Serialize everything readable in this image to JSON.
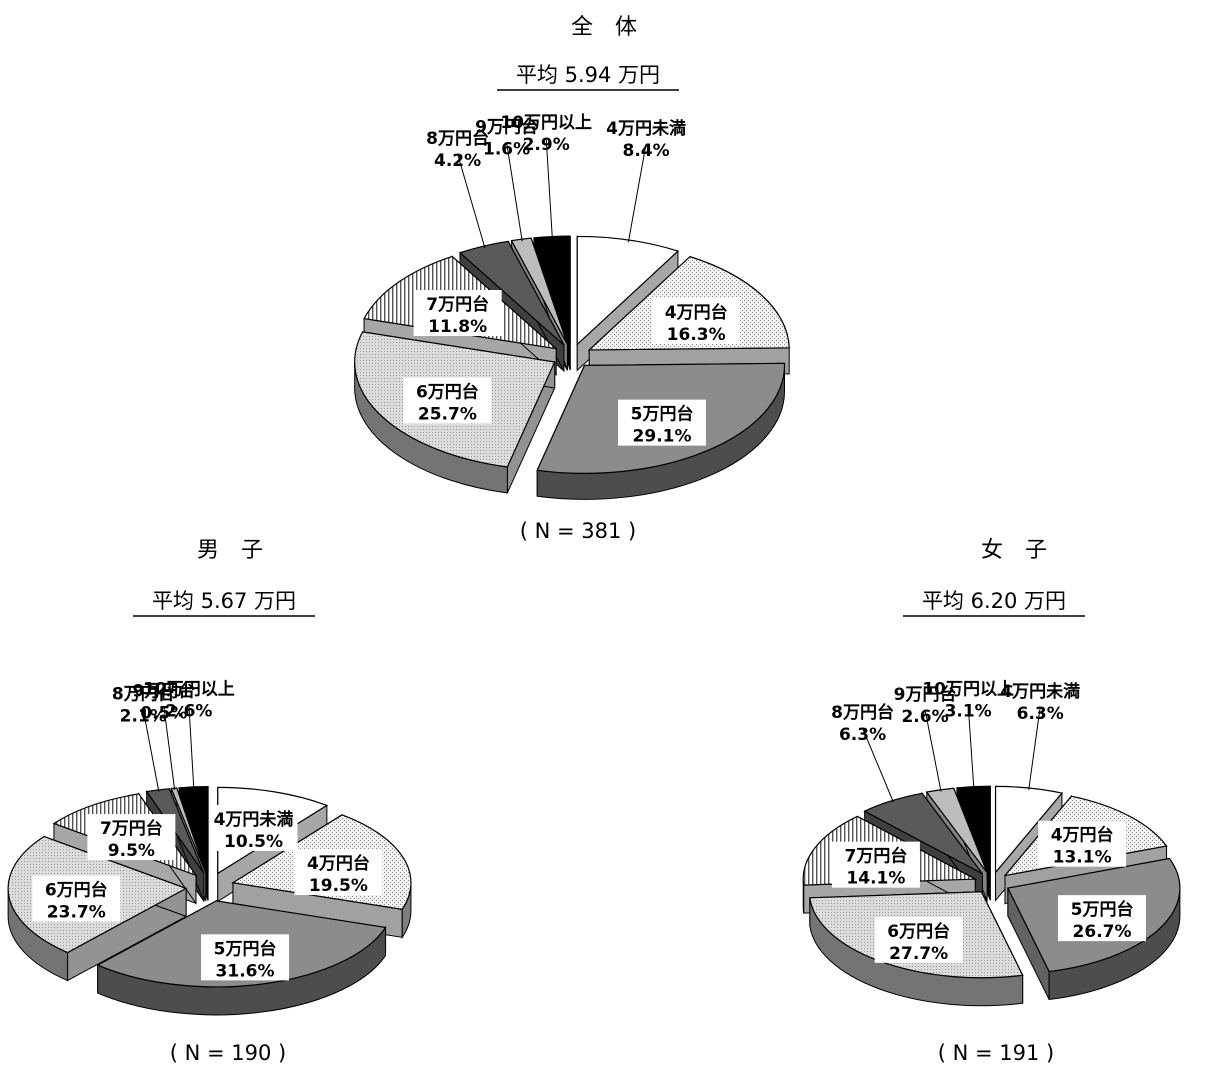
{
  "chart_data": [
    {
      "type": "pie",
      "title": "全　体",
      "subtitle": "平均 5.94 万円",
      "n_label": "( N = 381 )",
      "slices": [
        {
          "category": "4万円未満",
          "value": 8.4,
          "label": "8.4%",
          "fill": "#ffffff"
        },
        {
          "category": "4万円台",
          "value": 16.3,
          "label": "16.3%",
          "fill": "#e6e6e6"
        },
        {
          "category": "5万円台",
          "value": 29.1,
          "label": "29.1%",
          "fill": "#8c8c8c"
        },
        {
          "category": "6万円台",
          "value": 25.7,
          "label": "25.7%",
          "fill": "#d2d2d2"
        },
        {
          "category": "7万円台",
          "value": 11.8,
          "label": "11.8%",
          "fill": "#efefef"
        },
        {
          "category": "8万円台",
          "value": 4.2,
          "label": "4.2%",
          "fill": "#5a5a5a"
        },
        {
          "category": "9万円台",
          "value": 1.6,
          "label": "1.6%",
          "fill": "#bdbdbd"
        },
        {
          "category": "10万円以上",
          "value": 2.9,
          "label": "2.9%",
          "fill": "#000000"
        }
      ]
    },
    {
      "type": "pie",
      "title": "男　子",
      "subtitle": "平均 5.67 万円",
      "n_label": "( N = 190 )",
      "slices": [
        {
          "category": "4万円未満",
          "value": 10.5,
          "label": "10.5%",
          "fill": "#ffffff"
        },
        {
          "category": "4万円台",
          "value": 19.5,
          "label": "19.5%",
          "fill": "#e6e6e6"
        },
        {
          "category": "5万円台",
          "value": 31.6,
          "label": "31.6%",
          "fill": "#8c8c8c"
        },
        {
          "category": "6万円台",
          "value": 23.7,
          "label": "23.7%",
          "fill": "#d2d2d2"
        },
        {
          "category": "7万円台",
          "value": 9.5,
          "label": "9.5%",
          "fill": "#efefef"
        },
        {
          "category": "8万円台",
          "value": 2.1,
          "label": "2.1%",
          "fill": "#5a5a5a"
        },
        {
          "category": "9万円台",
          "value": 0.5,
          "label": "0.5%",
          "fill": "#bdbdbd"
        },
        {
          "category": "10万円以上",
          "value": 2.6,
          "label": "2.6%",
          "fill": "#000000"
        }
      ]
    },
    {
      "type": "pie",
      "title": "女　子",
      "subtitle": "平均 6.20 万円",
      "n_label": "( N = 191 )",
      "slices": [
        {
          "category": "4万円未満",
          "value": 6.3,
          "label": "6.3%",
          "fill": "#ffffff"
        },
        {
          "category": "4万円台",
          "value": 13.1,
          "label": "13.1%",
          "fill": "#e6e6e6"
        },
        {
          "category": "5万円台",
          "value": 26.7,
          "label": "26.7%",
          "fill": "#8c8c8c"
        },
        {
          "category": "6万円台",
          "value": 27.7,
          "label": "27.7%",
          "fill": "#d2d2d2"
        },
        {
          "category": "7万円台",
          "value": 14.1,
          "label": "14.1%",
          "fill": "#efefef"
        },
        {
          "category": "8万円台",
          "value": 6.3,
          "label": "6.3%",
          "fill": "#5a5a5a"
        },
        {
          "category": "9万円台",
          "value": 2.6,
          "label": "2.6%",
          "fill": "#bdbdbd"
        },
        {
          "category": "10万円以上",
          "value": 3.1,
          "label": "3.1%",
          "fill": "#000000"
        }
      ]
    }
  ]
}
